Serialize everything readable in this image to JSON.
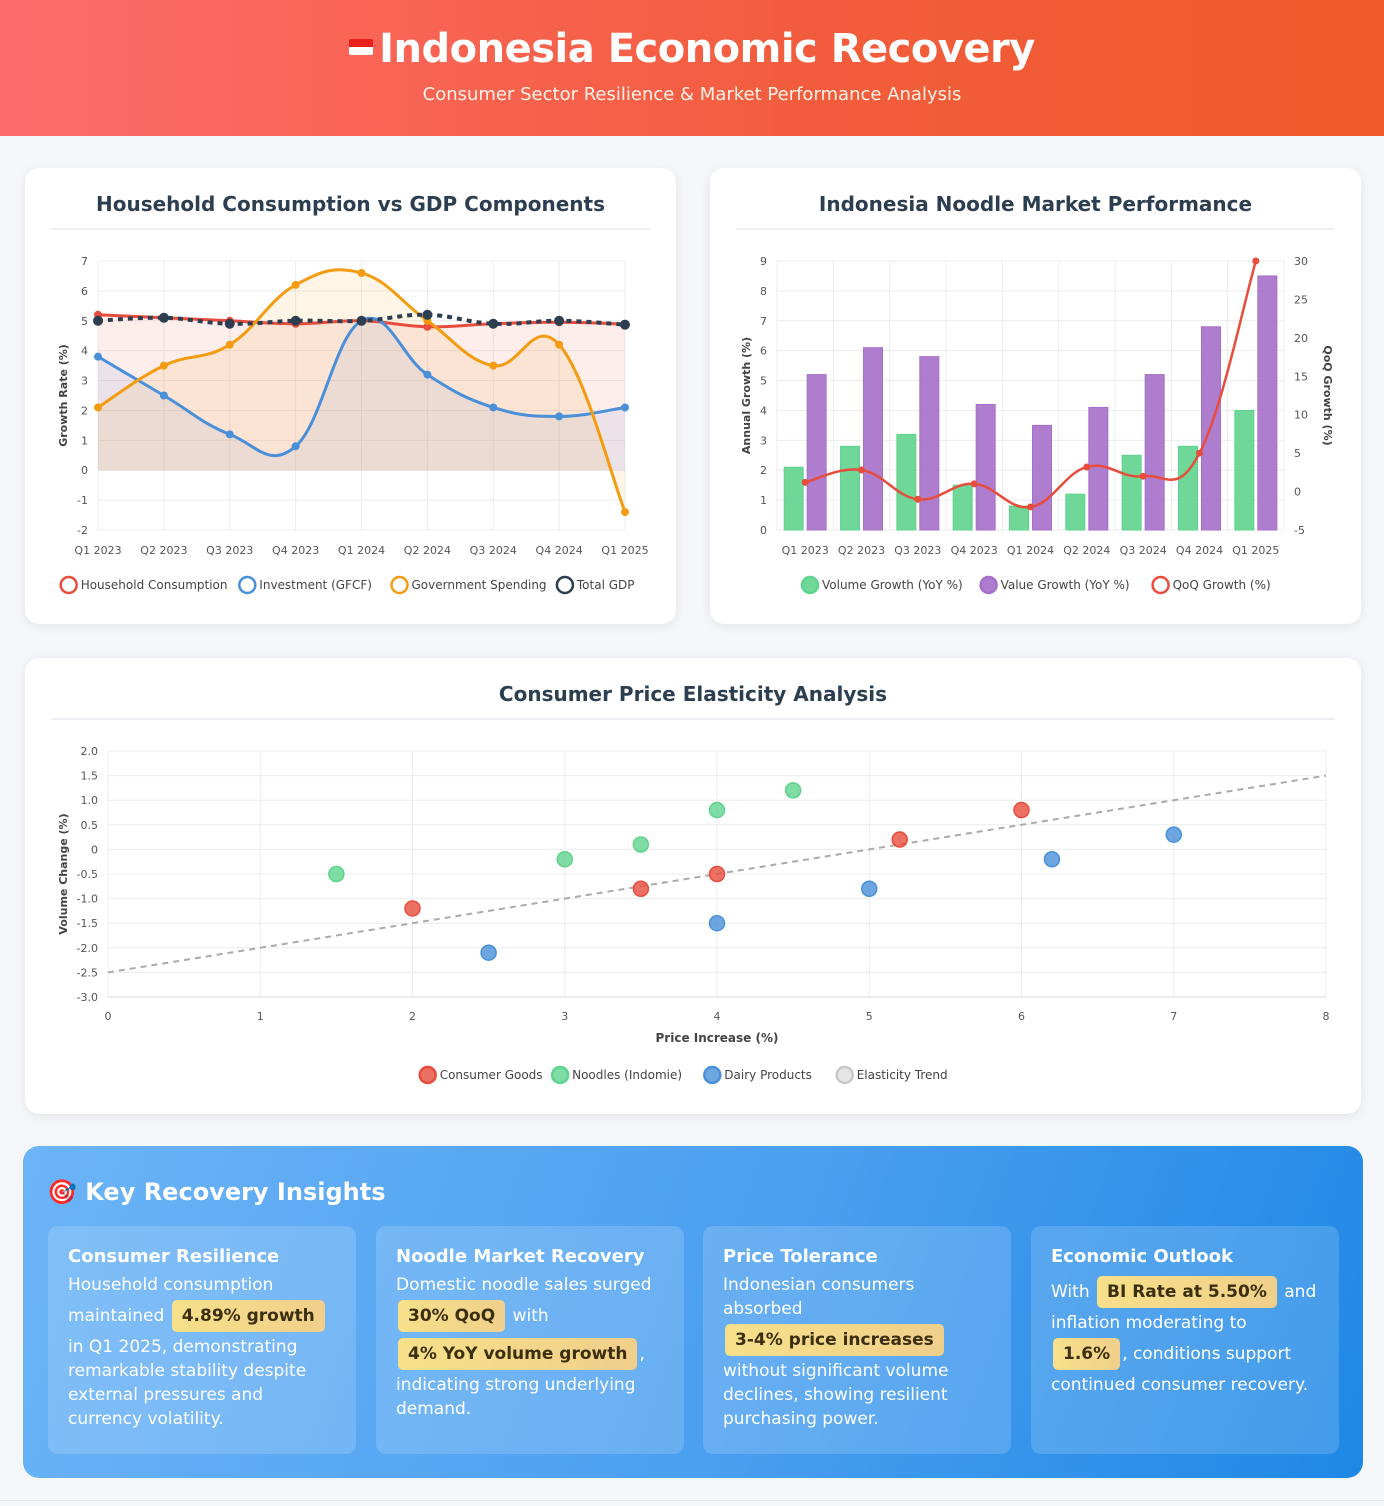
{
  "header": {
    "title": "Indonesia Economic Recovery",
    "subtitle": "Consumer Sector Resilience & Market Performance Analysis"
  },
  "colors": {
    "red": "#e74c3c",
    "blue": "#4a90d9",
    "orange": "#f39c12",
    "dark": "#2c3e50",
    "green": "#5fd38d",
    "purple": "#a66fc9",
    "grey": "#aaaaaa"
  },
  "chart_data": [
    {
      "id": "gdp",
      "type": "line",
      "title": "Household Consumption vs GDP Components",
      "ylabel": "Growth Rate (%)",
      "xlabel": "",
      "ylim": [
        -2,
        7
      ],
      "yticks": [
        "-2",
        "-1",
        "0",
        "1",
        "2",
        "3",
        "4",
        "5",
        "6",
        "7"
      ],
      "categories": [
        "Q1 2023",
        "Q2 2023",
        "Q3 2023",
        "Q4 2023",
        "Q1 2024",
        "Q2 2024",
        "Q3 2024",
        "Q4 2024",
        "Q1 2025"
      ],
      "series": [
        {
          "name": "Household Consumption",
          "color": "#e74c3c",
          "values": [
            5.2,
            5.1,
            5.0,
            4.9,
            5.0,
            4.8,
            4.9,
            4.95,
            4.89
          ]
        },
        {
          "name": "Investment (GFCF)",
          "color": "#4a90d9",
          "values": [
            3.8,
            2.5,
            1.2,
            0.8,
            5.0,
            3.2,
            2.1,
            1.8,
            2.1
          ]
        },
        {
          "name": "Government Spending",
          "color": "#f39c12",
          "values": [
            2.1,
            3.5,
            4.2,
            6.2,
            6.6,
            5.0,
            3.5,
            4.2,
            -1.4
          ]
        },
        {
          "name": "Total GDP",
          "color": "#2c3e50",
          "dashed": true,
          "values": [
            5.0,
            5.1,
            4.9,
            5.0,
            5.0,
            5.2,
            4.9,
            5.0,
            4.87
          ]
        }
      ],
      "legend_position": "bottom",
      "grid": true
    },
    {
      "id": "noodle",
      "type": "bar",
      "title": "Indonesia Noodle Market Performance",
      "ylabel": "Annual Growth (%)",
      "y2label": "QoQ Growth (%)",
      "ylim": [
        0,
        9
      ],
      "y2lim": [
        -5,
        30
      ],
      "yticks": [
        "0",
        "1",
        "2",
        "3",
        "4",
        "5",
        "6",
        "7",
        "8",
        "9"
      ],
      "y2ticks": [
        "-5",
        "0",
        "5",
        "10",
        "15",
        "20",
        "25",
        "30"
      ],
      "categories": [
        "Q1 2023",
        "Q2 2023",
        "Q3 2023",
        "Q4 2023",
        "Q1 2024",
        "Q2 2024",
        "Q3 2024",
        "Q4 2024",
        "Q1 2025"
      ],
      "series": [
        {
          "name": "Volume Growth (YoY %)",
          "color": "#5fd38d",
          "values": [
            2.1,
            2.8,
            3.2,
            1.5,
            0.8,
            1.2,
            2.5,
            2.8,
            4.0
          ]
        },
        {
          "name": "Value Growth (YoY %)",
          "color": "#a66fc9",
          "values": [
            5.2,
            6.1,
            5.8,
            4.2,
            3.5,
            4.1,
            5.2,
            6.8,
            8.5
          ]
        },
        {
          "name": "QoQ Growth (%)",
          "color": "#e74c3c",
          "type": "line",
          "axis": "right",
          "values": [
            1.2,
            2.8,
            -1.0,
            1.0,
            -2.0,
            3.2,
            2.0,
            5.0,
            30.0
          ]
        }
      ],
      "legend_position": "bottom",
      "grid": true
    },
    {
      "id": "elasticity",
      "type": "scatter",
      "title": "Consumer Price Elasticity Analysis",
      "xlabel": "Price Increase (%)",
      "ylabel": "Volume Change (%)",
      "xlim": [
        0,
        8
      ],
      "ylim": [
        -3,
        2
      ],
      "xticks": [
        "0",
        "1",
        "2",
        "3",
        "4",
        "5",
        "6",
        "7",
        "8"
      ],
      "yticks": [
        "-3.0",
        "-2.5",
        "-2.0",
        "-1.5",
        "-1.0",
        "-0.5",
        "0",
        "0.5",
        "1.0",
        "1.5",
        "2.0"
      ],
      "series": [
        {
          "name": "Consumer Goods",
          "color": "#e74c3c",
          "points": [
            [
              2,
              -1.2
            ],
            [
              3.5,
              -0.8
            ],
            [
              4,
              -0.5
            ],
            [
              5.2,
              0.2
            ],
            [
              6,
              0.8
            ]
          ]
        },
        {
          "name": "Noodles (Indomie)",
          "color": "#5fd38d",
          "points": [
            [
              1.5,
              -0.5
            ],
            [
              3,
              -0.2
            ],
            [
              3.5,
              0.1
            ],
            [
              4,
              0.8
            ],
            [
              4.5,
              1.2
            ]
          ]
        },
        {
          "name": "Dairy Products",
          "color": "#4a90d9",
          "points": [
            [
              2.5,
              -2.1
            ],
            [
              4,
              -1.5
            ],
            [
              5,
              -0.8
            ],
            [
              6.2,
              -0.2
            ],
            [
              7,
              0.3
            ]
          ]
        },
        {
          "name": "Elasticity Trend",
          "color": "#aaaaaa",
          "type": "line",
          "dashed": true,
          "points": [
            [
              0,
              -2.5
            ],
            [
              8,
              1.5
            ]
          ]
        }
      ],
      "legend_position": "bottom",
      "grid": true
    }
  ],
  "insights": {
    "title": "Key Recovery Insights",
    "cards": [
      {
        "title": "Consumer Resilience",
        "t1": "Household consumption maintained ",
        "hl1": "4.89% growth",
        "t2": " in Q1 2025, demonstrating remarkable stability despite external pressures and currency volatility."
      },
      {
        "title": "Noodle Market Recovery",
        "t1": "Domestic noodle sales surged ",
        "hl1": "30% QoQ",
        "t2": " with ",
        "hl2": "4% YoY volume growth",
        "t3": ", indicating strong underlying demand."
      },
      {
        "title": "Price Tolerance",
        "t1": "Indonesian consumers absorbed ",
        "hl1": "3-4% price increases",
        "t2": " without significant volume declines, showing resilient purchasing power."
      },
      {
        "title": "Economic Outlook",
        "t1": "With ",
        "hl1": "BI Rate at 5.50%",
        "t2": " and inflation moderating to ",
        "hl2": "1.6%",
        "t3": ", conditions support continued consumer recovery."
      }
    ]
  }
}
